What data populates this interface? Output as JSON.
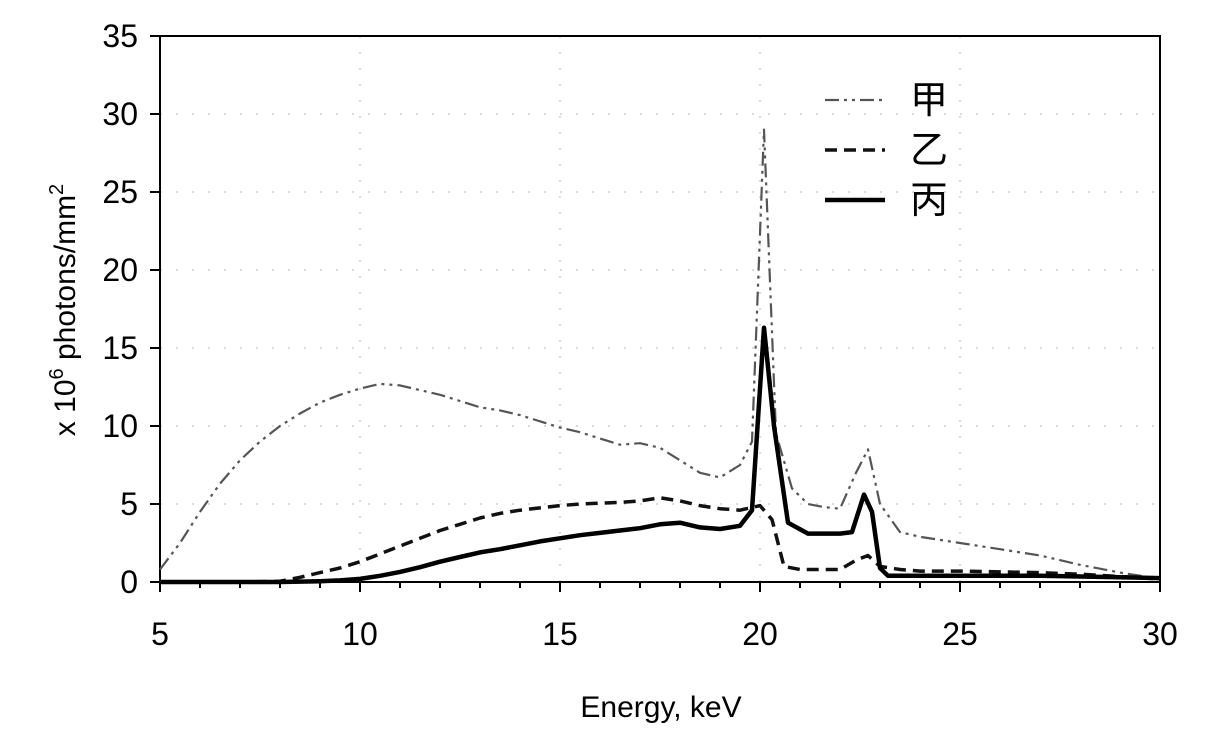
{
  "chart_data": {
    "type": "line",
    "xlabel": "Energy, keV",
    "ylabel_main": "x 10",
    "ylabel_sup1": "6",
    "ylabel_mid": " photons/mm",
    "ylabel_sup2": "2",
    "xlim": [
      5,
      30
    ],
    "ylim": [
      0,
      35
    ],
    "xticks": [
      5,
      10,
      15,
      20,
      25,
      30
    ],
    "yticks": [
      0,
      5,
      10,
      15,
      20,
      25,
      30,
      35
    ],
    "grid": true,
    "legend_position": "top-right",
    "series": [
      {
        "name": "甲",
        "style": "dash-dot-dot",
        "color": "#555555",
        "x": [
          5,
          5.5,
          6,
          6.5,
          7,
          7.5,
          8,
          8.5,
          9,
          9.5,
          10,
          10.5,
          11,
          11.5,
          12,
          12.5,
          13,
          13.5,
          14,
          14.5,
          15,
          15.5,
          16,
          16.5,
          17,
          17.5,
          18,
          18.5,
          19,
          19.5,
          19.8,
          20.1,
          20.4,
          20.8,
          21.2,
          21.6,
          22.0,
          22.4,
          22.7,
          23.0,
          23.5,
          24,
          25,
          26,
          27,
          28,
          29,
          30
        ],
        "y": [
          0.8,
          2.5,
          4.5,
          6.3,
          7.8,
          9.0,
          10.0,
          10.8,
          11.5,
          12.0,
          12.4,
          12.7,
          12.6,
          12.3,
          12.0,
          11.6,
          11.2,
          11.0,
          10.7,
          10.3,
          9.9,
          9.6,
          9.2,
          8.8,
          8.9,
          8.6,
          7.8,
          7.0,
          6.7,
          7.5,
          9.0,
          29.0,
          9.5,
          6.0,
          5.0,
          4.8,
          4.7,
          7.0,
          8.5,
          5.0,
          3.2,
          2.9,
          2.5,
          2.1,
          1.7,
          1.1,
          0.6,
          0.2
        ]
      },
      {
        "name": "乙",
        "style": "dashed",
        "color": "#111111",
        "x": [
          5,
          6,
          7,
          8,
          8.5,
          9,
          9.5,
          10,
          10.5,
          11,
          11.5,
          12,
          12.5,
          13,
          13.5,
          14,
          14.5,
          15,
          15.5,
          16,
          16.5,
          17,
          17.5,
          18,
          18.5,
          19,
          19.5,
          20.0,
          20.3,
          20.6,
          21.0,
          21.5,
          22.0,
          22.4,
          22.7,
          23.0,
          23.5,
          24,
          25,
          26,
          27,
          28,
          29,
          30
        ],
        "y": [
          0,
          0,
          0,
          0.05,
          0.3,
          0.6,
          0.9,
          1.3,
          1.8,
          2.3,
          2.8,
          3.3,
          3.7,
          4.1,
          4.4,
          4.6,
          4.75,
          4.9,
          5.0,
          5.05,
          5.1,
          5.2,
          5.4,
          5.2,
          4.9,
          4.7,
          4.6,
          4.9,
          4.0,
          1.0,
          0.8,
          0.8,
          0.8,
          1.4,
          1.7,
          1.0,
          0.8,
          0.7,
          0.7,
          0.65,
          0.6,
          0.5,
          0.35,
          0.2
        ]
      },
      {
        "name": "丙",
        "style": "solid",
        "color": "#000000",
        "x": [
          5,
          6,
          7,
          8,
          9,
          9.5,
          10,
          10.5,
          11,
          11.5,
          12,
          12.5,
          13,
          13.5,
          14,
          14.5,
          15,
          15.5,
          16,
          16.5,
          17,
          17.5,
          18,
          18.5,
          19,
          19.5,
          19.8,
          20.1,
          20.35,
          20.7,
          21.2,
          21.6,
          22.0,
          22.3,
          22.6,
          22.8,
          23.0,
          23.2,
          24,
          25,
          26,
          27,
          28,
          29,
          30
        ],
        "y": [
          0,
          0,
          0,
          0,
          0.05,
          0.1,
          0.2,
          0.4,
          0.65,
          0.95,
          1.3,
          1.6,
          1.9,
          2.1,
          2.35,
          2.6,
          2.8,
          3.0,
          3.15,
          3.3,
          3.45,
          3.7,
          3.8,
          3.5,
          3.4,
          3.6,
          4.6,
          16.3,
          10.0,
          3.8,
          3.1,
          3.1,
          3.1,
          3.2,
          5.6,
          4.5,
          0.9,
          0.4,
          0.4,
          0.4,
          0.4,
          0.4,
          0.35,
          0.3,
          0.25
        ]
      }
    ]
  }
}
